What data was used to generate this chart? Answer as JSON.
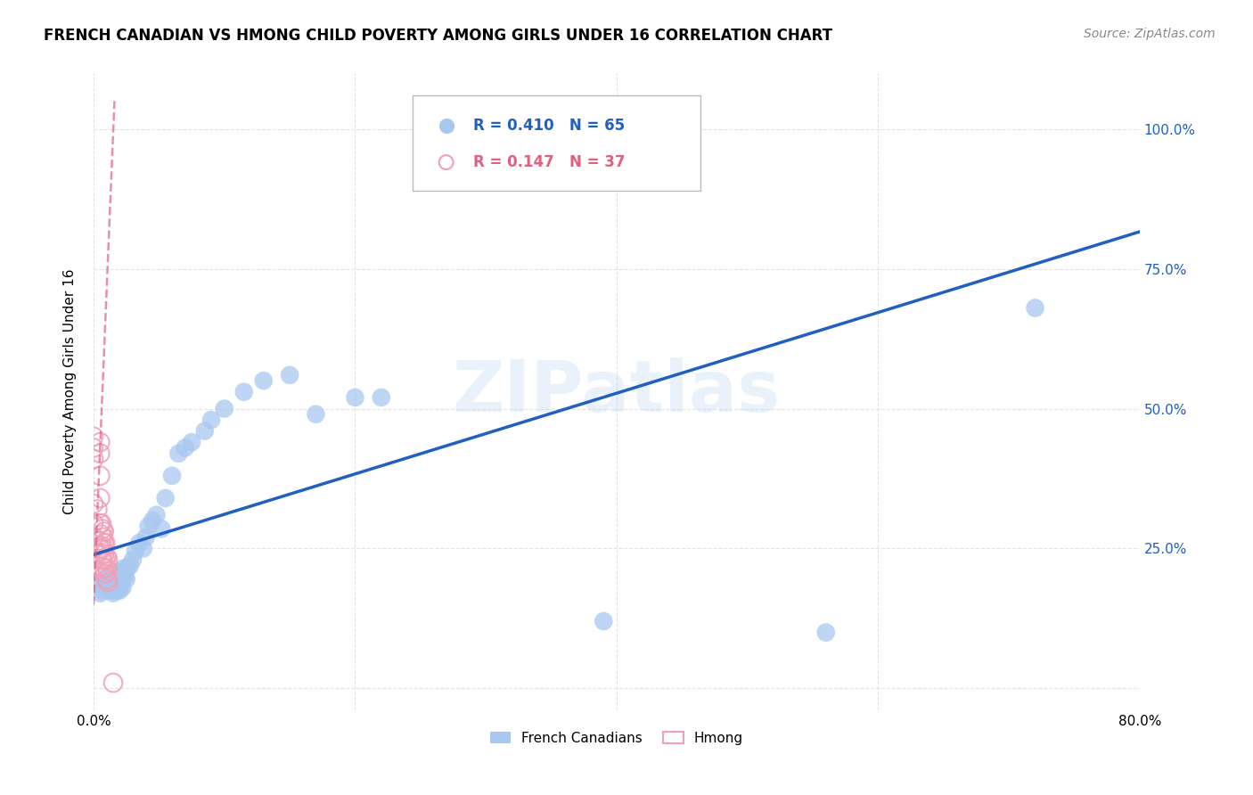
{
  "title": "FRENCH CANADIAN VS HMONG CHILD POVERTY AMONG GIRLS UNDER 16 CORRELATION CHART",
  "source": "Source: ZipAtlas.com",
  "ylabel": "Child Poverty Among Girls Under 16",
  "xlim": [
    0,
    0.8
  ],
  "ylim": [
    -0.04,
    1.1
  ],
  "watermark": "ZIPatlas",
  "legend_fc_label": "French Canadians",
  "legend_hmong_label": "Hmong",
  "fc_R": 0.41,
  "fc_N": 65,
  "hmong_R": 0.147,
  "hmong_N": 37,
  "fc_color": "#A8C8F0",
  "hmong_color": "#F0A0B8",
  "fc_line_color": "#2060C0",
  "hmong_line_color": "#E06080",
  "background_color": "#FFFFFF",
  "grid_color": "#DDDDDD",
  "title_fontsize": 12,
  "fc_scatter_x": [
    0.005,
    0.005,
    0.007,
    0.008,
    0.01,
    0.01,
    0.01,
    0.01,
    0.012,
    0.012,
    0.013,
    0.013,
    0.015,
    0.015,
    0.015,
    0.015,
    0.016,
    0.016,
    0.017,
    0.017,
    0.018,
    0.018,
    0.018,
    0.019,
    0.019,
    0.02,
    0.02,
    0.02,
    0.02,
    0.021,
    0.022,
    0.022,
    0.023,
    0.024,
    0.025,
    0.026,
    0.028,
    0.03,
    0.032,
    0.035,
    0.038,
    0.04,
    0.042,
    0.045,
    0.048,
    0.052,
    0.055,
    0.06,
    0.065,
    0.07,
    0.075,
    0.085,
    0.09,
    0.1,
    0.115,
    0.13,
    0.15,
    0.17,
    0.2,
    0.22,
    0.265,
    0.27,
    0.39,
    0.56,
    0.72
  ],
  "fc_scatter_y": [
    0.17,
    0.185,
    0.175,
    0.19,
    0.18,
    0.185,
    0.195,
    0.2,
    0.175,
    0.19,
    0.18,
    0.195,
    0.17,
    0.18,
    0.185,
    0.195,
    0.175,
    0.185,
    0.18,
    0.19,
    0.175,
    0.18,
    0.195,
    0.185,
    0.2,
    0.175,
    0.183,
    0.19,
    0.2,
    0.21,
    0.18,
    0.205,
    0.215,
    0.2,
    0.195,
    0.215,
    0.22,
    0.23,
    0.245,
    0.26,
    0.25,
    0.27,
    0.29,
    0.3,
    0.31,
    0.285,
    0.34,
    0.38,
    0.42,
    0.43,
    0.44,
    0.46,
    0.48,
    0.5,
    0.53,
    0.55,
    0.56,
    0.49,
    0.52,
    0.52,
    1.0,
    1.0,
    0.12,
    0.1,
    0.68
  ],
  "hmong_scatter_x": [
    0.0,
    0.0,
    0.0,
    0.0,
    0.0,
    0.0,
    0.0,
    0.003,
    0.003,
    0.005,
    0.005,
    0.005,
    0.005,
    0.005,
    0.005,
    0.006,
    0.006,
    0.006,
    0.006,
    0.007,
    0.007,
    0.007,
    0.007,
    0.008,
    0.008,
    0.008,
    0.008,
    0.009,
    0.009,
    0.009,
    0.01,
    0.01,
    0.01,
    0.011,
    0.011,
    0.011,
    0.015
  ],
  "hmong_scatter_y": [
    0.45,
    0.43,
    0.41,
    0.33,
    0.295,
    0.27,
    0.25,
    0.32,
    0.24,
    0.44,
    0.42,
    0.38,
    0.34,
    0.295,
    0.25,
    0.295,
    0.275,
    0.255,
    0.23,
    0.285,
    0.27,
    0.25,
    0.23,
    0.28,
    0.26,
    0.24,
    0.215,
    0.26,
    0.23,
    0.205,
    0.235,
    0.215,
    0.195,
    0.23,
    0.21,
    0.19,
    0.01
  ],
  "hmong_line_x0": 0.0,
  "hmong_line_y0": 0.15,
  "hmong_line_x1": 0.016,
  "hmong_line_y1": 1.05
}
